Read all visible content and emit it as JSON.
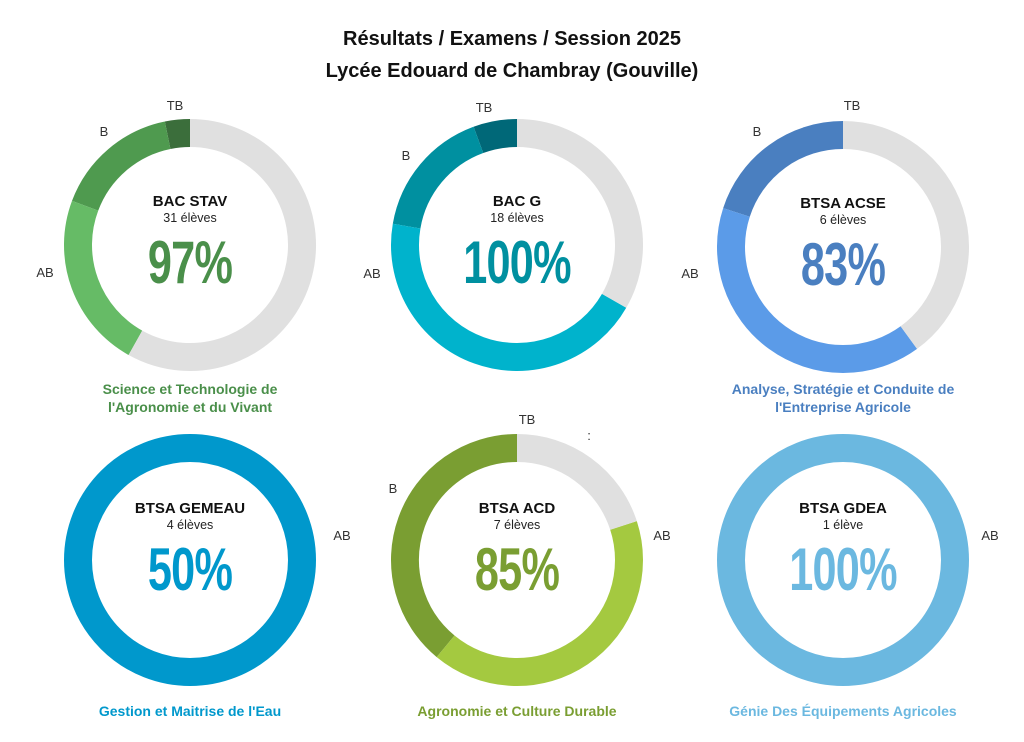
{
  "header": {
    "line1": "Résultats / Examens / Session 2025",
    "line2": "Lycée Edouard de Chambray (Gouville)"
  },
  "stray_mark": ":",
  "chart_data": [
    {
      "type": "pie",
      "variant": "donut",
      "name": "BAC STAV",
      "students": "31 élèves",
      "rate": "97%",
      "subtitle": [
        "Science  et Technologie de",
        "l'Agronomie et du Vivant"
      ],
      "accent": "#4a8f4a",
      "segments": [
        {
          "label": "TB",
          "value": 3.2,
          "color": "#3b6e3b"
        },
        {
          "label": "B",
          "value": 16.1,
          "color": "#4f9a4f"
        },
        {
          "label": "AB",
          "value": 22.6,
          "color": "#66bb66"
        },
        {
          "label": "",
          "value": 58.1,
          "color": "#e0e0e0"
        }
      ]
    },
    {
      "type": "pie",
      "variant": "donut",
      "name": "BAC G",
      "students": "18 élèves",
      "rate": "100%",
      "subtitle": [],
      "accent": "#0090a0",
      "segments": [
        {
          "label": "TB",
          "value": 5.6,
          "color": "#006878"
        },
        {
          "label": "B",
          "value": 16.7,
          "color": "#0090a0"
        },
        {
          "label": "AB",
          "value": 44.4,
          "color": "#00b3cc"
        },
        {
          "label": "",
          "value": 33.3,
          "color": "#e0e0e0"
        }
      ]
    },
    {
      "type": "pie",
      "variant": "donut",
      "name": "BTSA ACSE",
      "students": "6 élèves",
      "rate": "83%",
      "subtitle": [
        "Analyse, Stratégie et Conduite de",
        "l'Entreprise Agricole"
      ],
      "accent": "#4a7fc0",
      "segments": [
        {
          "label": "TB",
          "value": 0,
          "color": "#2f5f9f"
        },
        {
          "label": "B",
          "value": 20,
          "color": "#4a7fc0"
        },
        {
          "label": "AB",
          "value": 40,
          "color": "#5b9be8"
        },
        {
          "label": "",
          "value": 40,
          "color": "#e0e0e0"
        }
      ]
    },
    {
      "type": "pie",
      "variant": "donut",
      "name": "BTSA GEMEAU",
      "students": "4 élèves",
      "rate": "50%",
      "subtitle": [
        "Gestion et Maitrise de l'Eau"
      ],
      "accent": "#0098cc",
      "segments": [
        {
          "label": "AB",
          "value": 100,
          "color": "#0098cc"
        }
      ]
    },
    {
      "type": "pie",
      "variant": "donut",
      "name": "BTSA ACD",
      "students": "7 élèves",
      "rate": "85%",
      "subtitle": [
        "Agronomie et Culture Durable"
      ],
      "accent": "#7a9e32",
      "segments": [
        {
          "label": "TB",
          "value": 0,
          "color": "#5f7f22"
        },
        {
          "label": "B",
          "value": 39,
          "color": "#7a9e32"
        },
        {
          "label": "AB",
          "value": 41,
          "color": "#a4c940"
        },
        {
          "label": "",
          "value": 20,
          "color": "#e0e0e0"
        }
      ]
    },
    {
      "type": "pie",
      "variant": "donut",
      "name": "BTSA GDEA",
      "students": "1 élève",
      "rate": "100%",
      "subtitle": [
        "Génie Des Équipements Agricoles"
      ],
      "accent": "#6bb8e0",
      "segments": [
        {
          "label": "AB",
          "value": 100,
          "color": "#6bb8e0"
        }
      ]
    }
  ]
}
